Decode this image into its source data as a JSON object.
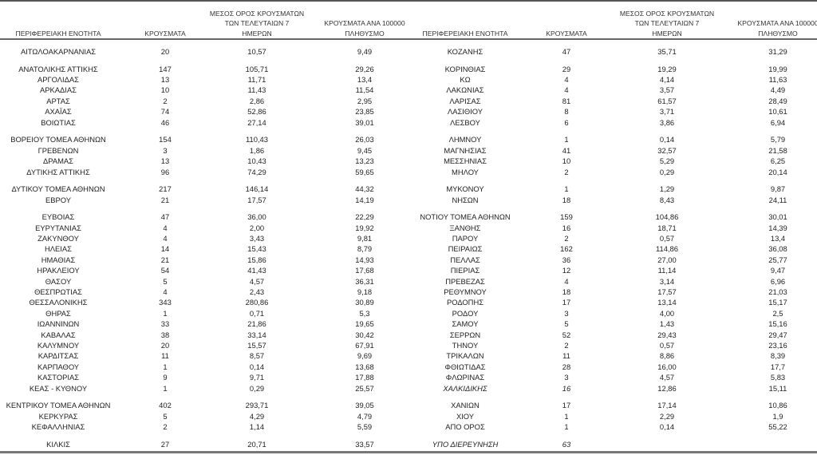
{
  "headers": {
    "region": "ΠΕΡΙΦΕΡΕΙΑΚΗ ΕΝΟΤΗΤΑ",
    "cases": "ΚΡΟΥΣΜΑΤΑ",
    "avg7": "ΜΕΣΟΣ ΟΡΟΣ ΚΡΟΥΣΜΑΤΩΝ\nΤΩΝ ΤΕΛΕΥΤΑΙΩΝ 7\nΗΜΕΡΩΝ",
    "per100k": "ΚΡΟΥΣΜΑΤΑ ΑΝΑ 100000\nΠΛΗΘΥΣΜΟ"
  },
  "groups": [
    {
      "left": [
        [
          "ΑΙΤΩΛΟΑΚΑΡΝΑΝΙΑΣ",
          "20",
          "10,57",
          "9,49"
        ]
      ],
      "right": [
        [
          "ΚΟΖΑΝΗΣ",
          "47",
          "35,71",
          "31,29"
        ]
      ]
    },
    {
      "left": [
        [
          "ΑΝΑΤΟΛΙΚΗΣ ΑΤΤΙΚΗΣ",
          "147",
          "105,71",
          "29,26"
        ],
        [
          "ΑΡΓΟΛΙΔΑΣ",
          "13",
          "11,71",
          "13,4"
        ],
        [
          "ΑΡΚΑΔΙΑΣ",
          "10",
          "11,43",
          "11,54"
        ],
        [
          "ΑΡΤΑΣ",
          "2",
          "2,86",
          "2,95"
        ],
        [
          "ΑΧΑΪΑΣ",
          "74",
          "52,86",
          "23,85"
        ],
        [
          "ΒΟΙΩΤΙΑΣ",
          "46",
          "27,14",
          "39,01"
        ]
      ],
      "right": [
        [
          "ΚΟΡΙΝΘΙΑΣ",
          "29",
          "19,29",
          "19,99"
        ],
        [
          "ΚΩ",
          "4",
          "4,14",
          "11,63"
        ],
        [
          "ΛΑΚΩΝΙΑΣ",
          "4",
          "3,57",
          "4,49"
        ],
        [
          "ΛΑΡΙΣΑΣ",
          "81",
          "61,57",
          "28,49"
        ],
        [
          "ΛΑΣΙΘΙΟΥ",
          "8",
          "3,71",
          "10,61"
        ],
        [
          "ΛΕΣΒΟΥ",
          "6",
          "3,86",
          "6,94"
        ]
      ]
    },
    {
      "left": [
        [
          "ΒΟΡΕΙΟΥ ΤΟΜΕΑ ΑΘΗΝΩΝ",
          "154",
          "110,43",
          "26,03"
        ],
        [
          "ΓΡΕΒΕΝΩΝ",
          "3",
          "1,86",
          "9,45"
        ],
        [
          "ΔΡΑΜΑΣ",
          "13",
          "10,43",
          "13,23"
        ],
        [
          "ΔΥΤΙΚΗΣ ΑΤΤΙΚΗΣ",
          "96",
          "74,29",
          "59,65"
        ]
      ],
      "right": [
        [
          "ΛΗΜΝΟΥ",
          "1",
          "0,14",
          "5,79"
        ],
        [
          "ΜΑΓΝΗΣΙΑΣ",
          "41",
          "32,57",
          "21,58"
        ],
        [
          "ΜΕΣΣΗΝΙΑΣ",
          "10",
          "5,29",
          "6,25"
        ],
        [
          "ΜΗΛΟΥ",
          "2",
          "0,29",
          "20,14"
        ]
      ]
    },
    {
      "left": [
        [
          "ΔΥΤΙΚΟΥ ΤΟΜΕΑ ΑΘΗΝΩΝ",
          "217",
          "146,14",
          "44,32"
        ],
        [
          "ΕΒΡΟΥ",
          "21",
          "17,57",
          "14,19"
        ]
      ],
      "right": [
        [
          "ΜΥΚΟΝΟΥ",
          "1",
          "1,29",
          "9,87"
        ],
        [
          "ΝΗΣΩΝ",
          "18",
          "8,43",
          "24,11"
        ]
      ]
    },
    {
      "left": [
        [
          "ΕΥΒΟΙΑΣ",
          "47",
          "36,00",
          "22,29"
        ],
        [
          "ΕΥΡΥΤΑΝΙΑΣ",
          "4",
          "2,00",
          "19,92"
        ],
        [
          "ΖΑΚΥΝΘΟΥ",
          "4",
          "3,43",
          "9,81"
        ],
        [
          "ΗΛΕΙΑΣ",
          "14",
          "15,43",
          "8,79"
        ],
        [
          "ΗΜΑΘΙΑΣ",
          "21",
          "15,86",
          "14,93"
        ],
        [
          "ΗΡΑΚΛΕΙΟΥ",
          "54",
          "41,43",
          "17,68"
        ],
        [
          "ΘΑΣΟΥ",
          "5",
          "4,57",
          "36,31"
        ],
        [
          "ΘΕΣΠΡΩΤΙΑΣ",
          "4",
          "2,43",
          "9,18"
        ],
        [
          "ΘΕΣΣΑΛΟΝΙΚΗΣ",
          "343",
          "280,86",
          "30,89"
        ],
        [
          "ΘΗΡΑΣ",
          "1",
          "0,71",
          "5,3"
        ],
        [
          "ΙΩΑΝΝΙΝΩΝ",
          "33",
          "21,86",
          "19,65"
        ],
        [
          "ΚΑΒΑΛΑΣ",
          "38",
          "33,14",
          "30,42"
        ],
        [
          "ΚΑΛΥΜΝΟΥ",
          "20",
          "15,57",
          "67,91"
        ],
        [
          "ΚΑΡΔΙΤΣΑΣ",
          "11",
          "8,57",
          "9,69"
        ],
        [
          "ΚΑΡΠΑΘΟΥ",
          "1",
          "0,14",
          "13,68"
        ],
        [
          "ΚΑΣΤΟΡΙΑΣ",
          "9",
          "9,71",
          "17,88"
        ],
        [
          "ΚΕΑΣ - ΚΥΘΝΟΥ",
          "1",
          "0,29",
          "25,57"
        ]
      ],
      "right": [
        [
          "ΝΟΤΙΟΥ ΤΟΜΕΑ ΑΘΗΝΩΝ",
          "159",
          "104,86",
          "30,01"
        ],
        [
          "ΞΑΝΘΗΣ",
          "16",
          "18,71",
          "14,39"
        ],
        [
          "ΠΑΡΟΥ",
          "2",
          "0,57",
          "13,4"
        ],
        [
          "ΠΕΙΡΑΙΩΣ",
          "162",
          "114,86",
          "36,08"
        ],
        [
          "ΠΕΛΛΑΣ",
          "36",
          "27,00",
          "25,77"
        ],
        [
          "ΠΙΕΡΙΑΣ",
          "12",
          "11,14",
          "9,47"
        ],
        [
          "ΠΡΕΒΕΖΑΣ",
          "4",
          "3,14",
          "6,96"
        ],
        [
          "ΡΕΘΥΜΝΟΥ",
          "18",
          "17,57",
          "21,03"
        ],
        [
          "ΡΟΔΟΠΗΣ",
          "17",
          "13,14",
          "15,17"
        ],
        [
          "ΡΟΔΟΥ",
          "3",
          "4,00",
          "2,5"
        ],
        [
          "ΣΑΜΟΥ",
          "5",
          "1,43",
          "15,16"
        ],
        [
          "ΣΕΡΡΩΝ",
          "52",
          "29,43",
          "29,47"
        ],
        [
          "ΤΗΝΟΥ",
          "2",
          "0,57",
          "23,16"
        ],
        [
          "ΤΡΙΚΑΛΩΝ",
          "11",
          "8,86",
          "8,39"
        ],
        [
          "ΦΘΙΩΤΙΔΑΣ",
          "28",
          "16,00",
          "17,7"
        ],
        [
          "ΦΛΩΡΙΝΑΣ",
          "3",
          "4,57",
          "5,83"
        ],
        [
          "ΧΑΛΚΙΔΙΚΗΣ",
          "16",
          "12,86",
          "15,11"
        ]
      ]
    },
    {
      "left": [
        [
          "ΚΕΝΤΡΙΚΟΥ ΤΟΜΕΑ ΑΘΗΝΩΝ",
          "402",
          "293,71",
          "39,05"
        ],
        [
          "ΚΕΡΚΥΡΑΣ",
          "5",
          "4,29",
          "4,79"
        ],
        [
          "ΚΕΦΑΛΛΗΝΙΑΣ",
          "2",
          "1,14",
          "5,59"
        ]
      ],
      "right": [
        [
          "ΧΑΝΙΩΝ",
          "17",
          "17,14",
          "10,86"
        ],
        [
          "ΧΙΟΥ",
          "1",
          "2,29",
          "1,9"
        ],
        [
          "ΑΠΟ ΟΡΟΣ",
          "1",
          "0,14",
          "55,22"
        ]
      ]
    },
    {
      "left": [
        [
          "ΚΙΛΚΙΣ",
          "27",
          "20,71",
          "33,57"
        ]
      ],
      "right": [
        [
          "ΥΠΟ ΔΙΕΡΕΥΝΗΣΗ",
          "63"
        ]
      ]
    }
  ]
}
